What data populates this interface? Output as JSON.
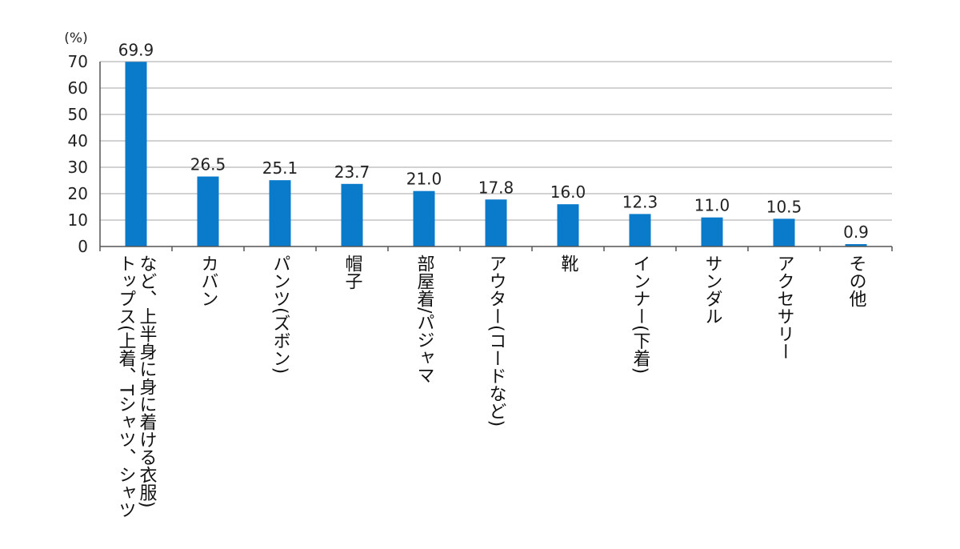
{
  "chart_data": {
    "type": "bar",
    "unit_label": "(%)",
    "categories": [
      [
        "トップス(上着、Tシャツ、シャツ",
        "など、上半身に身に着ける衣服)"
      ],
      [
        "カバン"
      ],
      [
        "パンツ(ズボン)"
      ],
      [
        "帽子"
      ],
      [
        "部屋着/パジャマ"
      ],
      [
        "アウター(コードなど)"
      ],
      [
        "靴"
      ],
      [
        "インナー(下着)"
      ],
      [
        "サンダル"
      ],
      [
        "アクセサリー"
      ],
      [
        "その他"
      ]
    ],
    "values": [
      69.9,
      26.5,
      25.1,
      23.7,
      21.0,
      17.8,
      16.0,
      12.3,
      11.0,
      10.5,
      0.9
    ],
    "value_labels": [
      "69.9",
      "26.5",
      "25.1",
      "23.7",
      "21.0",
      "17.8",
      "16.0",
      "12.3",
      "11.0",
      "10.5",
      "0.9"
    ],
    "yticks": [
      "0",
      "10",
      "20",
      "30",
      "40",
      "50",
      "60",
      "70"
    ],
    "ylim": [
      0,
      70
    ],
    "grid": true,
    "bar_color": "#0a7acb",
    "grid_color": "#a6a6a6",
    "axis_color": "#555555"
  }
}
